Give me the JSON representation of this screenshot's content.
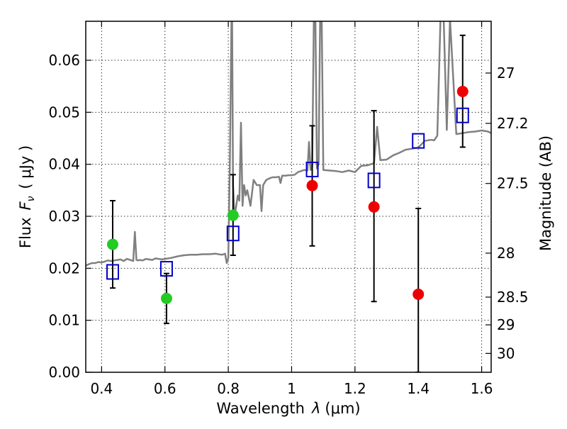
{
  "chart_data": {
    "type": "scatter",
    "title": "",
    "xlabel_main": "Wavelength",
    "xlabel_var": "λ",
    "xlabel_unit": "(μm)",
    "ylabel_main": "Flux",
    "ylabel_var": "F",
    "ylabel_sub": "ν",
    "ylabel_unit": "( μJy )",
    "y2label": "Magnitude (AB)",
    "xlim": [
      0.35,
      1.63
    ],
    "ylim": [
      0.0,
      0.0675
    ],
    "grid": true,
    "x_ticks": [
      {
        "value": 0.4,
        "label": "0.4"
      },
      {
        "value": 0.6,
        "label": "0.6"
      },
      {
        "value": 0.8,
        "label": "0.8"
      },
      {
        "value": 1.0,
        "label": "1"
      },
      {
        "value": 1.2,
        "label": "1.2"
      },
      {
        "value": 1.4,
        "label": "1.4"
      },
      {
        "value": 1.6,
        "label": "1.6"
      }
    ],
    "y_ticks": [
      {
        "value": 0.0,
        "label": "0.00"
      },
      {
        "value": 0.01,
        "label": "0.01"
      },
      {
        "value": 0.02,
        "label": "0.02"
      },
      {
        "value": 0.03,
        "label": "0.03"
      },
      {
        "value": 0.04,
        "label": "0.04"
      },
      {
        "value": 0.05,
        "label": "0.05"
      },
      {
        "value": 0.06,
        "label": "0.06"
      }
    ],
    "y2_ticks": [
      {
        "mag": 27,
        "label": "27"
      },
      {
        "mag": 27.2,
        "label": "27.2"
      },
      {
        "mag": 27.5,
        "label": "27.5"
      },
      {
        "mag": 28,
        "label": "28"
      },
      {
        "mag": 28.5,
        "label": "28.5"
      },
      {
        "mag": 29,
        "label": "29"
      },
      {
        "mag": 30,
        "label": "30"
      }
    ],
    "series": [
      {
        "color": "#808080",
        "kind": "line",
        "x": [
          0.35,
          0.36,
          0.37,
          0.38,
          0.39,
          0.4,
          0.41,
          0.42,
          0.43,
          0.44,
          0.45,
          0.46,
          0.47,
          0.48,
          0.49,
          0.5,
          0.505,
          0.51,
          0.515,
          0.52,
          0.53,
          0.54,
          0.55,
          0.56,
          0.57,
          0.58,
          0.59,
          0.6,
          0.62,
          0.64,
          0.66,
          0.68,
          0.7,
          0.72,
          0.74,
          0.76,
          0.78,
          0.79,
          0.795,
          0.8,
          0.805,
          0.81,
          0.812,
          0.815,
          0.82,
          0.825,
          0.83,
          0.835,
          0.84,
          0.845,
          0.85,
          0.855,
          0.86,
          0.87,
          0.88,
          0.89,
          0.9,
          0.905,
          0.91,
          0.92,
          0.93,
          0.94,
          0.95,
          0.96,
          0.965,
          0.97,
          0.98,
          0.99,
          1.0,
          1.01,
          1.02,
          1.03,
          1.04,
          1.05,
          1.055,
          1.06,
          1.065,
          1.07,
          1.075,
          1.08,
          1.085,
          1.09,
          1.095,
          1.1,
          1.12,
          1.14,
          1.16,
          1.18,
          1.2,
          1.22,
          1.24,
          1.26,
          1.27,
          1.28,
          1.3,
          1.32,
          1.34,
          1.36,
          1.38,
          1.4,
          1.42,
          1.44,
          1.45,
          1.46,
          1.47,
          1.48,
          1.49,
          1.5,
          1.52,
          1.54,
          1.56,
          1.58,
          1.6,
          1.62,
          1.63
        ],
        "y": [
          0.0205,
          0.0208,
          0.021,
          0.021,
          0.0212,
          0.0211,
          0.0213,
          0.0215,
          0.0214,
          0.0215,
          0.0216,
          0.0217,
          0.0214,
          0.0218,
          0.0216,
          0.0214,
          0.027,
          0.0216,
          0.0215,
          0.0216,
          0.0215,
          0.0218,
          0.0217,
          0.0216,
          0.0219,
          0.0218,
          0.0217,
          0.0218,
          0.022,
          0.0223,
          0.0225,
          0.0226,
          0.0226,
          0.0227,
          0.0227,
          0.0228,
          0.0226,
          0.0228,
          0.021,
          0.022,
          0.04,
          0.068,
          0.068,
          0.036,
          0.03,
          0.032,
          0.034,
          0.033,
          0.048,
          0.032,
          0.036,
          0.034,
          0.035,
          0.032,
          0.037,
          0.036,
          0.036,
          0.031,
          0.036,
          0.037,
          0.0373,
          0.0375,
          0.0375,
          0.0376,
          0.0364,
          0.0378,
          0.0378,
          0.0379,
          0.0379,
          0.038,
          0.0385,
          0.0387,
          0.0389,
          0.0388,
          0.0443,
          0.0389,
          0.0395,
          0.068,
          0.068,
          0.0392,
          0.04,
          0.068,
          0.068,
          0.0389,
          0.0388,
          0.0387,
          0.0385,
          0.0388,
          0.0385,
          0.0397,
          0.0398,
          0.0402,
          0.0472,
          0.0408,
          0.0409,
          0.0417,
          0.0422,
          0.0428,
          0.043,
          0.0432,
          0.0445,
          0.0447,
          0.0446,
          0.0455,
          0.068,
          0.068,
          0.0466,
          0.068,
          0.0458,
          0.046,
          0.0462,
          0.0463,
          0.0465,
          0.0463,
          0.046
        ]
      },
      {
        "color": "#0000cc",
        "kind": "open-square",
        "x": [
          0.435,
          0.605,
          0.815,
          1.065,
          1.26,
          1.4,
          1.54
        ],
        "y": [
          0.0193,
          0.0199,
          0.0267,
          0.039,
          0.0369,
          0.0445,
          0.0494
        ]
      },
      {
        "color": "#22cc22",
        "kind": "filled-circle",
        "x": [
          0.435,
          0.605,
          0.815
        ],
        "y": [
          0.0246,
          0.0142,
          0.0302
        ],
        "err": [
          [
            0.0162,
            0.033
          ],
          [
            0.0094,
            0.019
          ],
          [
            0.0225,
            0.038
          ]
        ]
      },
      {
        "color": "#ee0000",
        "kind": "filled-circle",
        "x": [
          1.065,
          1.26,
          1.4,
          1.54
        ],
        "y": [
          0.0359,
          0.0318,
          0.015,
          0.054
        ],
        "err": [
          [
            0.0243,
            0.0474
          ],
          [
            0.0136,
            0.0503
          ],
          [
            0.0,
            0.0315
          ],
          [
            0.0433,
            0.0648
          ]
        ]
      }
    ]
  }
}
